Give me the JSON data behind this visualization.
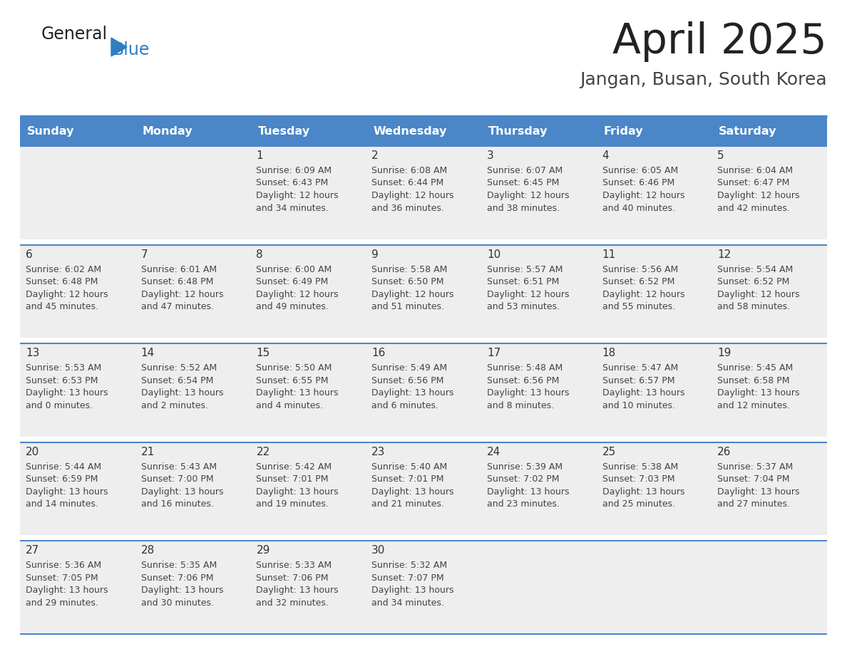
{
  "title": "April 2025",
  "subtitle": "Jangan, Busan, South Korea",
  "header_color": "#4a86c8",
  "header_text_color": "#ffffff",
  "cell_bg_color": "#eeeeee",
  "gap_color": "#ffffff",
  "day_names": [
    "Sunday",
    "Monday",
    "Tuesday",
    "Wednesday",
    "Thursday",
    "Friday",
    "Saturday"
  ],
  "title_color": "#222222",
  "subtitle_color": "#444444",
  "logo_general_color": "#222222",
  "logo_blue_color": "#2e7ec1",
  "line_color": "#4a86c8",
  "day_number_color": "#333333",
  "info_text_color": "#444444",
  "weeks": [
    [
      {
        "day": "",
        "info": ""
      },
      {
        "day": "",
        "info": ""
      },
      {
        "day": "1",
        "info": "Sunrise: 6:09 AM\nSunset: 6:43 PM\nDaylight: 12 hours\nand 34 minutes."
      },
      {
        "day": "2",
        "info": "Sunrise: 6:08 AM\nSunset: 6:44 PM\nDaylight: 12 hours\nand 36 minutes."
      },
      {
        "day": "3",
        "info": "Sunrise: 6:07 AM\nSunset: 6:45 PM\nDaylight: 12 hours\nand 38 minutes."
      },
      {
        "day": "4",
        "info": "Sunrise: 6:05 AM\nSunset: 6:46 PM\nDaylight: 12 hours\nand 40 minutes."
      },
      {
        "day": "5",
        "info": "Sunrise: 6:04 AM\nSunset: 6:47 PM\nDaylight: 12 hours\nand 42 minutes."
      }
    ],
    [
      {
        "day": "6",
        "info": "Sunrise: 6:02 AM\nSunset: 6:48 PM\nDaylight: 12 hours\nand 45 minutes."
      },
      {
        "day": "7",
        "info": "Sunrise: 6:01 AM\nSunset: 6:48 PM\nDaylight: 12 hours\nand 47 minutes."
      },
      {
        "day": "8",
        "info": "Sunrise: 6:00 AM\nSunset: 6:49 PM\nDaylight: 12 hours\nand 49 minutes."
      },
      {
        "day": "9",
        "info": "Sunrise: 5:58 AM\nSunset: 6:50 PM\nDaylight: 12 hours\nand 51 minutes."
      },
      {
        "day": "10",
        "info": "Sunrise: 5:57 AM\nSunset: 6:51 PM\nDaylight: 12 hours\nand 53 minutes."
      },
      {
        "day": "11",
        "info": "Sunrise: 5:56 AM\nSunset: 6:52 PM\nDaylight: 12 hours\nand 55 minutes."
      },
      {
        "day": "12",
        "info": "Sunrise: 5:54 AM\nSunset: 6:52 PM\nDaylight: 12 hours\nand 58 minutes."
      }
    ],
    [
      {
        "day": "13",
        "info": "Sunrise: 5:53 AM\nSunset: 6:53 PM\nDaylight: 13 hours\nand 0 minutes."
      },
      {
        "day": "14",
        "info": "Sunrise: 5:52 AM\nSunset: 6:54 PM\nDaylight: 13 hours\nand 2 minutes."
      },
      {
        "day": "15",
        "info": "Sunrise: 5:50 AM\nSunset: 6:55 PM\nDaylight: 13 hours\nand 4 minutes."
      },
      {
        "day": "16",
        "info": "Sunrise: 5:49 AM\nSunset: 6:56 PM\nDaylight: 13 hours\nand 6 minutes."
      },
      {
        "day": "17",
        "info": "Sunrise: 5:48 AM\nSunset: 6:56 PM\nDaylight: 13 hours\nand 8 minutes."
      },
      {
        "day": "18",
        "info": "Sunrise: 5:47 AM\nSunset: 6:57 PM\nDaylight: 13 hours\nand 10 minutes."
      },
      {
        "day": "19",
        "info": "Sunrise: 5:45 AM\nSunset: 6:58 PM\nDaylight: 13 hours\nand 12 minutes."
      }
    ],
    [
      {
        "day": "20",
        "info": "Sunrise: 5:44 AM\nSunset: 6:59 PM\nDaylight: 13 hours\nand 14 minutes."
      },
      {
        "day": "21",
        "info": "Sunrise: 5:43 AM\nSunset: 7:00 PM\nDaylight: 13 hours\nand 16 minutes."
      },
      {
        "day": "22",
        "info": "Sunrise: 5:42 AM\nSunset: 7:01 PM\nDaylight: 13 hours\nand 19 minutes."
      },
      {
        "day": "23",
        "info": "Sunrise: 5:40 AM\nSunset: 7:01 PM\nDaylight: 13 hours\nand 21 minutes."
      },
      {
        "day": "24",
        "info": "Sunrise: 5:39 AM\nSunset: 7:02 PM\nDaylight: 13 hours\nand 23 minutes."
      },
      {
        "day": "25",
        "info": "Sunrise: 5:38 AM\nSunset: 7:03 PM\nDaylight: 13 hours\nand 25 minutes."
      },
      {
        "day": "26",
        "info": "Sunrise: 5:37 AM\nSunset: 7:04 PM\nDaylight: 13 hours\nand 27 minutes."
      }
    ],
    [
      {
        "day": "27",
        "info": "Sunrise: 5:36 AM\nSunset: 7:05 PM\nDaylight: 13 hours\nand 29 minutes."
      },
      {
        "day": "28",
        "info": "Sunrise: 5:35 AM\nSunset: 7:06 PM\nDaylight: 13 hours\nand 30 minutes."
      },
      {
        "day": "29",
        "info": "Sunrise: 5:33 AM\nSunset: 7:06 PM\nDaylight: 13 hours\nand 32 minutes."
      },
      {
        "day": "30",
        "info": "Sunrise: 5:32 AM\nSunset: 7:07 PM\nDaylight: 13 hours\nand 34 minutes."
      },
      {
        "day": "",
        "info": ""
      },
      {
        "day": "",
        "info": ""
      },
      {
        "day": "",
        "info": ""
      }
    ]
  ]
}
